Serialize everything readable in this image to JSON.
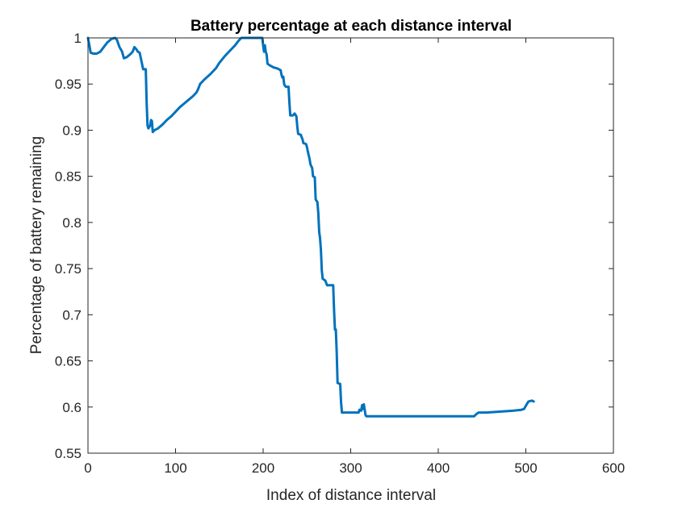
{
  "chart_data": {
    "type": "line",
    "title": "Battery percentage at each distance interval",
    "xlabel": "Index of distance interval",
    "ylabel": "Percentage of battery remaining",
    "xlim": [
      0,
      600
    ],
    "ylim": [
      0.55,
      1
    ],
    "xticks": [
      0,
      100,
      200,
      300,
      400,
      500,
      600
    ],
    "yticks": [
      0.55,
      0.6,
      0.65,
      0.7,
      0.75,
      0.8,
      0.85,
      0.9,
      0.95,
      1
    ],
    "ytick_labels": [
      "0.55",
      "0.6",
      "0.65",
      "0.7",
      "0.75",
      "0.8",
      "0.85",
      "0.9",
      "0.95",
      "1"
    ],
    "grid": false,
    "series": [
      {
        "color": "#0072BD",
        "points": [
          [
            0,
            1.0
          ],
          [
            2,
            0.99
          ],
          [
            3,
            0.984
          ],
          [
            6,
            0.983
          ],
          [
            10,
            0.983
          ],
          [
            14,
            0.985
          ],
          [
            18,
            0.99
          ],
          [
            22,
            0.995
          ],
          [
            27,
            0.999
          ],
          [
            31,
            1.0
          ],
          [
            33,
            0.998
          ],
          [
            36,
            0.99
          ],
          [
            39,
            0.985
          ],
          [
            41,
            0.978
          ],
          [
            44,
            0.979
          ],
          [
            48,
            0.982
          ],
          [
            51,
            0.985
          ],
          [
            53,
            0.99
          ],
          [
            55,
            0.988
          ],
          [
            57,
            0.985
          ],
          [
            59,
            0.984
          ],
          [
            61,
            0.975
          ],
          [
            63,
            0.966
          ],
          [
            66,
            0.966
          ],
          [
            67,
            0.93
          ],
          [
            68,
            0.905
          ],
          [
            69,
            0.902
          ],
          [
            71,
            0.905
          ],
          [
            72,
            0.911
          ],
          [
            73,
            0.91
          ],
          [
            74,
            0.898
          ],
          [
            76,
            0.9
          ],
          [
            80,
            0.902
          ],
          [
            85,
            0.906
          ],
          [
            90,
            0.911
          ],
          [
            95,
            0.915
          ],
          [
            100,
            0.92
          ],
          [
            105,
            0.925
          ],
          [
            110,
            0.929
          ],
          [
            115,
            0.933
          ],
          [
            120,
            0.937
          ],
          [
            124,
            0.941
          ],
          [
            126,
            0.945
          ],
          [
            128,
            0.95
          ],
          [
            133,
            0.955
          ],
          [
            140,
            0.961
          ],
          [
            146,
            0.967
          ],
          [
            150,
            0.973
          ],
          [
            156,
            0.98
          ],
          [
            162,
            0.986
          ],
          [
            168,
            0.992
          ],
          [
            172,
            0.997
          ],
          [
            175,
            1.0
          ],
          [
            199,
            1.0
          ],
          [
            200,
            0.992
          ],
          [
            201,
            0.985
          ],
          [
            202,
            0.992
          ],
          [
            203,
            0.985
          ],
          [
            204,
            0.982
          ],
          [
            205,
            0.972
          ],
          [
            208,
            0.97
          ],
          [
            212,
            0.968
          ],
          [
            216,
            0.967
          ],
          [
            220,
            0.965
          ],
          [
            221,
            0.96
          ],
          [
            222,
            0.957
          ],
          [
            223,
            0.958
          ],
          [
            224,
            0.95
          ],
          [
            225,
            0.948
          ],
          [
            226,
            0.947
          ],
          [
            229,
            0.947
          ],
          [
            230,
            0.93
          ],
          [
            231,
            0.916
          ],
          [
            234,
            0.916
          ],
          [
            236,
            0.918
          ],
          [
            238,
            0.915
          ],
          [
            239,
            0.904
          ],
          [
            240,
            0.896
          ],
          [
            243,
            0.895
          ],
          [
            245,
            0.89
          ],
          [
            246,
            0.886
          ],
          [
            249,
            0.885
          ],
          [
            250,
            0.882
          ],
          [
            251,
            0.877
          ],
          [
            253,
            0.869
          ],
          [
            254,
            0.863
          ],
          [
            256,
            0.859
          ],
          [
            257,
            0.85
          ],
          [
            259,
            0.849
          ],
          [
            260,
            0.825
          ],
          [
            262,
            0.822
          ],
          [
            263,
            0.81
          ],
          [
            264,
            0.79
          ],
          [
            265,
            0.783
          ],
          [
            266,
            0.77
          ],
          [
            267,
            0.748
          ],
          [
            268,
            0.739
          ],
          [
            271,
            0.737
          ],
          [
            273,
            0.732
          ],
          [
            280,
            0.732
          ],
          [
            281,
            0.705
          ],
          [
            282,
            0.684
          ],
          [
            283,
            0.684
          ],
          [
            284,
            0.66
          ],
          [
            285,
            0.626
          ],
          [
            288,
            0.625
          ],
          [
            289,
            0.605
          ],
          [
            290,
            0.594
          ],
          [
            305,
            0.594
          ],
          [
            309,
            0.594
          ],
          [
            310,
            0.597
          ],
          [
            312,
            0.596
          ],
          [
            313,
            0.602
          ],
          [
            314,
            0.598
          ],
          [
            315,
            0.603
          ],
          [
            317,
            0.591
          ],
          [
            318,
            0.59
          ],
          [
            322,
            0.59
          ],
          [
            430,
            0.59
          ],
          [
            441,
            0.59
          ],
          [
            443,
            0.592
          ],
          [
            446,
            0.594
          ],
          [
            455,
            0.594
          ],
          [
            470,
            0.595
          ],
          [
            485,
            0.596
          ],
          [
            495,
            0.597
          ],
          [
            498,
            0.598
          ],
          [
            501,
            0.603
          ],
          [
            503,
            0.606
          ],
          [
            507,
            0.607
          ],
          [
            509,
            0.606
          ]
        ]
      }
    ]
  }
}
